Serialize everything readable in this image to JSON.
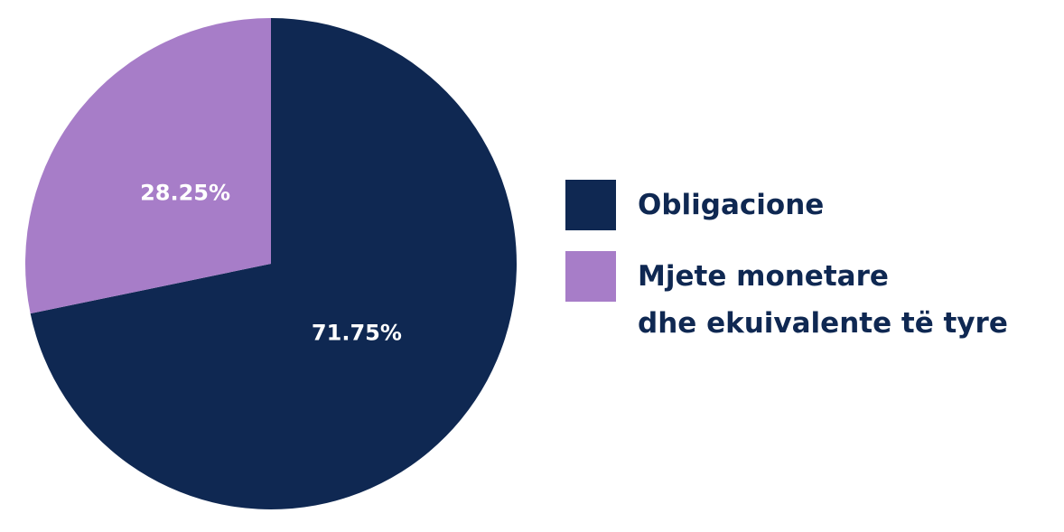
{
  "chart_data": {
    "type": "pie",
    "series": [
      {
        "name": "Obligacione",
        "color": "#0f2852",
        "values": [
          71.75
        ],
        "value_labels": [
          "71.75%"
        ]
      },
      {
        "name": "Mjete monetare\ndhe ekuivalente të tyre",
        "color": "#a77dc8",
        "values": [
          28.25
        ],
        "value_labels": [
          "28.25%"
        ]
      }
    ]
  }
}
